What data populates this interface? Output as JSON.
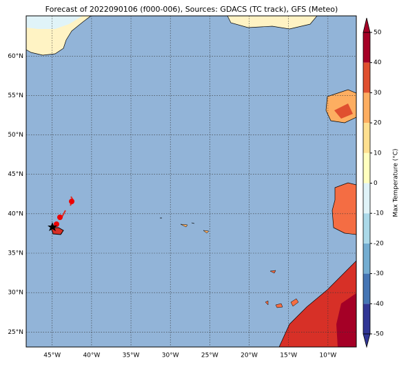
{
  "title": "Forecast of 2022090106 (f000-006), Sources: GDACS (TC track), GFS (Meteo)",
  "map": {
    "xlim": [
      -48.3,
      -6.4
    ],
    "ylim": [
      23.1,
      65.1
    ],
    "xticks": [
      {
        "value": -45,
        "label": "45°W"
      },
      {
        "value": -40,
        "label": "40°W"
      },
      {
        "value": -35,
        "label": "35°W"
      },
      {
        "value": -30,
        "label": "30°W"
      },
      {
        "value": -25,
        "label": "25°W"
      },
      {
        "value": -20,
        "label": "20°W"
      },
      {
        "value": -15,
        "label": "15°W"
      },
      {
        "value": -10,
        "label": "10°W"
      }
    ],
    "yticks": [
      {
        "value": 25,
        "label": "25°N"
      },
      {
        "value": 30,
        "label": "30°N"
      },
      {
        "value": 35,
        "label": "35°N"
      },
      {
        "value": 40,
        "label": "40°N"
      },
      {
        "value": 45,
        "label": "45°N"
      },
      {
        "value": 50,
        "label": "50°N"
      },
      {
        "value": 55,
        "label": "55°N"
      },
      {
        "value": 60,
        "label": "60°N"
      }
    ]
  },
  "colorbar": {
    "label": "Max Temperature (°C)",
    "lim": [
      -50,
      50
    ],
    "ticks": [
      -50,
      -40,
      -30,
      -20,
      -10,
      0,
      10,
      20,
      30,
      40,
      50
    ],
    "colors": [
      "#313695",
      "#4575b4",
      "#74add1",
      "#abd9e9",
      "#e0f3f8",
      "#ffffbf",
      "#fee090",
      "#fdae61",
      "#e0502f",
      "#a50026"
    ]
  }
}
